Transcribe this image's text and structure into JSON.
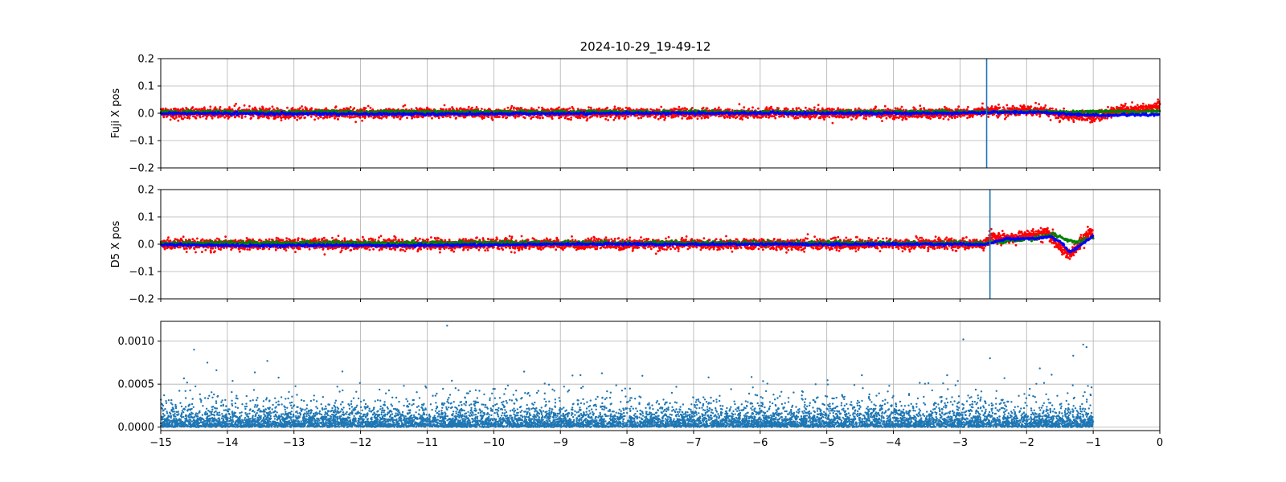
{
  "chart_data": [
    {
      "type": "scatter",
      "title": "2024-10-29_19-49-12",
      "xlabel": "",
      "ylabel": "Fuji X pos",
      "xlim": [
        -15,
        0
      ],
      "ylim": [
        -0.2,
        0.2
      ],
      "x_ticks": [
        -15,
        -14,
        -13,
        -12,
        -11,
        -10,
        -9,
        -8,
        -7,
        -6,
        -5,
        -4,
        -3,
        -2,
        -1,
        0
      ],
      "x_tick_labels_shown": false,
      "y_ticks": [
        -0.2,
        -0.1,
        0.0,
        0.1,
        0.2
      ],
      "y_tick_labels": [
        "−0.2",
        "−0.1",
        "0.0",
        "0.1",
        "0.2"
      ],
      "grid": true,
      "vline_x": -2.6,
      "vline_color": "#1f77b4",
      "series": [
        {
          "color": "#ff0000",
          "marker": "dot",
          "x_range": [
            -15,
            0
          ],
          "noise": 0.009,
          "trend": [
            [
              -15,
              0.0
            ],
            [
              -3.0,
              0.0
            ],
            [
              -2.6,
              0.008
            ],
            [
              -1.8,
              0.012
            ],
            [
              -1.4,
              -0.01
            ],
            [
              -1.0,
              -0.012
            ],
            [
              -0.6,
              0.01
            ],
            [
              -0.2,
              0.015
            ],
            [
              0,
              0.03
            ]
          ]
        },
        {
          "color": "#008000",
          "marker": "dot",
          "x_range": [
            -15,
            0
          ],
          "noise": 0.0025,
          "trend": [
            [
              -15,
              0.005
            ],
            [
              -2.6,
              0.005
            ],
            [
              -2.0,
              0.008
            ],
            [
              -1.5,
              0.004
            ],
            [
              -1.0,
              0.006
            ],
            [
              0,
              0.006
            ]
          ]
        },
        {
          "color": "#0000ff",
          "marker": "dot",
          "x_range": [
            -15,
            0
          ],
          "noise": 0.002,
          "trend": [
            [
              -15,
              0.0
            ],
            [
              -11,
              -0.003
            ],
            [
              -8,
              0.0
            ],
            [
              -3,
              0.0
            ],
            [
              -2.6,
              0.003
            ],
            [
              -1.8,
              0.004
            ],
            [
              -1.3,
              -0.005
            ],
            [
              -0.8,
              -0.008
            ],
            [
              0,
              -0.004
            ]
          ]
        }
      ]
    },
    {
      "type": "scatter",
      "xlabel": "",
      "ylabel": "D5 X pos",
      "xlim": [
        -15,
        0
      ],
      "ylim": [
        -0.2,
        0.2
      ],
      "x_ticks": [
        -15,
        -14,
        -13,
        -12,
        -11,
        -10,
        -9,
        -8,
        -7,
        -6,
        -5,
        -4,
        -3,
        -2,
        -1,
        0
      ],
      "x_tick_labels_shown": false,
      "y_ticks": [
        -0.2,
        -0.1,
        0.0,
        0.1,
        0.2
      ],
      "y_tick_labels": [
        "−0.2",
        "−0.1",
        "0.0",
        "0.1",
        "0.2"
      ],
      "grid": true,
      "vline_x": -2.55,
      "vline_color": "#1f77b4",
      "series": [
        {
          "color": "#ff0000",
          "marker": "dot",
          "x_range": [
            -15,
            -1
          ],
          "noise": 0.01,
          "trend": [
            [
              -15,
              0.0
            ],
            [
              -2.65,
              0.0
            ],
            [
              -2.55,
              0.025
            ],
            [
              -2.3,
              0.02
            ],
            [
              -2.0,
              0.03
            ],
            [
              -1.7,
              0.045
            ],
            [
              -1.55,
              0.0
            ],
            [
              -1.35,
              -0.04
            ],
            [
              -1.2,
              0.0
            ],
            [
              -1.05,
              0.05
            ],
            [
              -1.0,
              0.03
            ]
          ]
        },
        {
          "color": "#008000",
          "marker": "dot",
          "x_range": [
            -15,
            -1
          ],
          "noise": 0.003,
          "trend": [
            [
              -15,
              0.005
            ],
            [
              -2.6,
              0.005
            ],
            [
              -2.3,
              0.01
            ],
            [
              -1.9,
              0.02
            ],
            [
              -1.6,
              0.038
            ],
            [
              -1.45,
              0.02
            ],
            [
              -1.25,
              0.008
            ],
            [
              -1.0,
              0.025
            ]
          ]
        },
        {
          "color": "#0000ff",
          "marker": "dot",
          "x_range": [
            -15,
            -1
          ],
          "noise": 0.002,
          "trend": [
            [
              -15,
              -0.002
            ],
            [
              -14,
              -0.005
            ],
            [
              -11,
              -0.004
            ],
            [
              -9,
              0.0
            ],
            [
              -2.6,
              0.0
            ],
            [
              -2.3,
              0.02
            ],
            [
              -1.8,
              0.022
            ],
            [
              -1.65,
              0.03
            ],
            [
              -1.5,
              0.01
            ],
            [
              -1.35,
              -0.03
            ],
            [
              -1.2,
              -0.005
            ],
            [
              -1.0,
              0.03
            ]
          ]
        }
      ]
    },
    {
      "type": "scatter",
      "xlabel": "",
      "ylabel": "",
      "xlim": [
        -15,
        0
      ],
      "ylim": [
        -4e-05,
        0.00123
      ],
      "x_ticks": [
        -15,
        -14,
        -13,
        -12,
        -11,
        -10,
        -9,
        -8,
        -7,
        -6,
        -5,
        -4,
        -3,
        -2,
        -1,
        0
      ],
      "x_tick_labels": [
        "−15",
        "−14",
        "−13",
        "−12",
        "−11",
        "−10",
        "−9",
        "−8",
        "−7",
        "−6",
        "−5",
        "−4",
        "−3",
        "−2",
        "−1",
        "0"
      ],
      "y_ticks": [
        0.0,
        0.0005,
        0.001
      ],
      "y_tick_labels": [
        "0.0000",
        "0.0005",
        "0.0010"
      ],
      "grid": true,
      "series": [
        {
          "color": "#1f77b4",
          "marker": "dot",
          "x_range": [
            -15,
            -1
          ],
          "distribution": "exponential",
          "scale": 9e-05,
          "outliers": [
            [
              -14.5,
              0.0009
            ],
            [
              -14.3,
              0.00075
            ],
            [
              -13.4,
              0.00077
            ],
            [
              -10.7,
              0.00118
            ],
            [
              -2.95,
              0.00102
            ],
            [
              -1.15,
              0.00096
            ],
            [
              -1.1,
              0.00093
            ],
            [
              -2.55,
              0.0008
            ],
            [
              -1.3,
              0.00083
            ]
          ]
        }
      ]
    }
  ]
}
